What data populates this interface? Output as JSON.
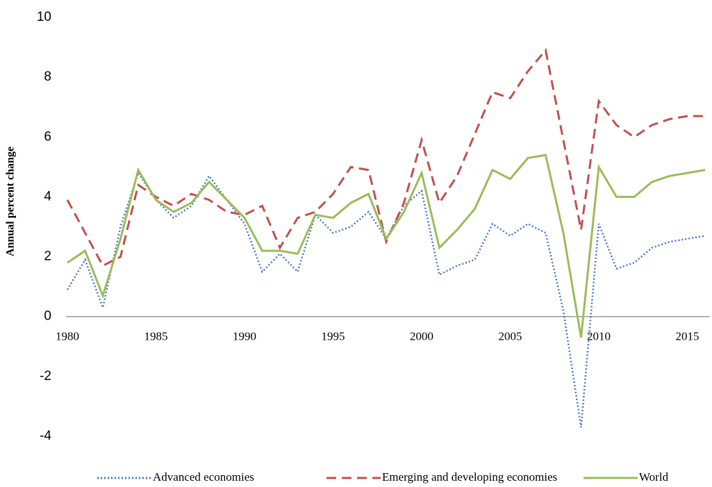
{
  "chart_data": {
    "type": "line",
    "y_label": "Annual percent change",
    "x": [
      1980,
      1981,
      1982,
      1983,
      1984,
      1985,
      1986,
      1987,
      1988,
      1989,
      1990,
      1991,
      1992,
      1993,
      1994,
      1995,
      1996,
      1997,
      1998,
      1999,
      2000,
      2001,
      2002,
      2003,
      2004,
      2005,
      2006,
      2007,
      2008,
      2009,
      2010,
      2011,
      2012,
      2013,
      2014,
      2015,
      2016
    ],
    "series": [
      {
        "name": "Advanced economies",
        "color": "#4472c4",
        "dash": "dotted",
        "values": [
          0.9,
          1.9,
          0.3,
          3.0,
          4.8,
          3.9,
          3.3,
          3.7,
          4.7,
          3.9,
          3.1,
          1.5,
          2.1,
          1.5,
          3.4,
          2.8,
          3.0,
          3.5,
          2.6,
          3.7,
          4.2,
          1.4,
          1.7,
          1.9,
          3.1,
          2.7,
          3.1,
          2.8,
          0.2,
          -3.7,
          3.1,
          1.6,
          1.8,
          2.3,
          2.5,
          2.6,
          2.7
        ]
      },
      {
        "name": "Emerging and developing economies",
        "color": "#c0504d",
        "dash": "dashed",
        "values": [
          3.9,
          2.8,
          1.7,
          2.0,
          4.4,
          4.0,
          3.7,
          4.1,
          3.9,
          3.5,
          3.4,
          3.7,
          2.3,
          3.3,
          3.5,
          4.1,
          5.0,
          4.9,
          2.5,
          3.8,
          5.9,
          3.8,
          4.7,
          6.1,
          7.5,
          7.3,
          8.2,
          8.9,
          5.9,
          2.9,
          7.2,
          6.4,
          6.0,
          6.4,
          6.6,
          6.7,
          6.7
        ]
      },
      {
        "name": "World",
        "color": "#9bbb59",
        "dash": "solid",
        "values": [
          1.8,
          2.2,
          0.7,
          2.6,
          4.9,
          3.9,
          3.5,
          3.8,
          4.5,
          3.9,
          3.3,
          2.2,
          2.2,
          2.1,
          3.4,
          3.3,
          3.8,
          4.1,
          2.6,
          3.5,
          4.8,
          2.3,
          2.9,
          3.6,
          4.9,
          4.6,
          5.3,
          5.4,
          2.8,
          -0.7,
          5.0,
          4.0,
          4.0,
          4.5,
          4.7,
          4.8,
          4.9
        ]
      }
    ],
    "xlim": [
      1980,
      2016
    ],
    "xticks": [
      1980,
      1985,
      1990,
      1995,
      2000,
      2005,
      2010,
      2015
    ],
    "ylim": [
      -4,
      10
    ],
    "yticks": [
      -4,
      -2,
      0,
      2,
      4,
      6,
      8,
      10
    ],
    "grid": false,
    "legend": "bottom"
  }
}
